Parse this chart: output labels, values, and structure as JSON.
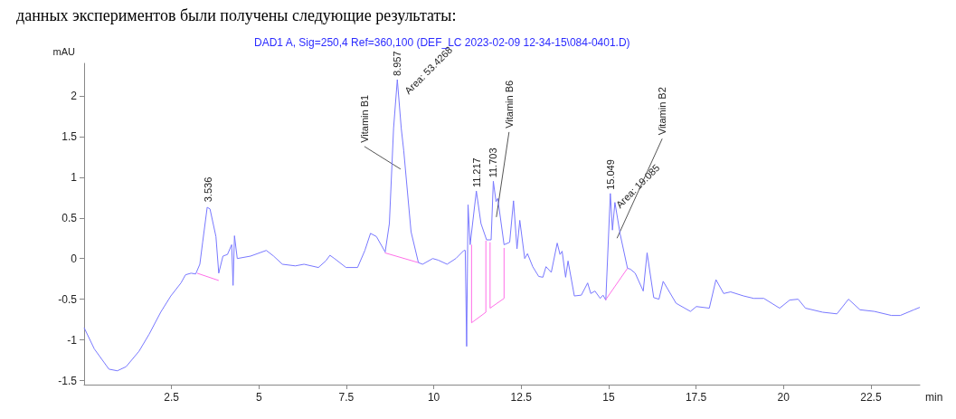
{
  "chart_data": {
    "type": "line",
    "title": "DAD1 A, Sig=250,4 Ref=360,100 (DEF_LC 2023-02-09 12-34-15\\084-0401.D)",
    "xlabel": "min",
    "ylabel": "mAU",
    "annotations": [
      {
        "text": "3.536",
        "x": 3.536,
        "y": 0.65
      },
      {
        "text": "Vitamin B1",
        "x": 9.05,
        "y": 1.1
      },
      {
        "text": "8.957",
        "x": 8.957,
        "y": 2.2
      },
      {
        "text": "Area: 53.4268",
        "x": 8.957,
        "y": 2.2
      },
      {
        "text": "11.217",
        "x": 11.217,
        "y": 0.83
      },
      {
        "text": "11.703",
        "x": 11.703,
        "y": 0.95
      },
      {
        "text": "Vitamin B6",
        "x": 11.79,
        "y": 0.51
      },
      {
        "text": "15.049",
        "x": 15.049,
        "y": 0.8
      },
      {
        "text": "Area: 19.085",
        "x": 15.049,
        "y": 0.8
      },
      {
        "text": "Vitamin B2",
        "x": 15.24,
        "y": 0.25
      },
      "данных экспериментов были получены следующие результаты:"
    ],
    "series": [
      {
        "color": "#7878ff",
        "x": [
          0,
          0.29,
          0.71,
          0.95,
          1.2,
          1.57,
          1.86,
          2.19,
          2.48,
          2.77,
          2.9,
          3.06,
          3.19,
          3.31,
          3.39,
          3.52,
          3.6,
          3.77,
          3.85,
          3.97,
          4.1,
          4.22,
          4.26,
          4.3,
          4.38,
          4.76,
          5.21,
          5.42,
          5.67,
          6.04,
          6.29,
          6.7,
          6.91,
          7.03,
          7.16,
          7.49,
          7.82,
          8.03,
          8.19,
          8.36,
          8.61,
          8.73,
          8.85,
          8.957,
          9.07,
          9.14,
          9.35,
          9.56,
          9.68,
          9.97,
          10.13,
          10.38,
          10.63,
          10.86,
          10.9,
          10.94,
          10.98,
          11.04,
          11.217,
          11.35,
          11.51,
          11.64,
          11.703,
          11.78,
          11.83,
          12.01,
          12.17,
          12.28,
          12.38,
          12.46,
          12.6,
          12.68,
          12.83,
          13.0,
          13.12,
          13.21,
          13.36,
          13.53,
          13.61,
          13.67,
          13.77,
          13.84,
          14.02,
          14.22,
          14.4,
          14.49,
          14.61,
          14.76,
          14.84,
          14.92,
          15.049,
          15.11,
          15.18,
          15.33,
          15.54,
          15.62,
          15.76,
          15.99,
          16.1,
          16.29,
          16.44,
          16.56,
          16.93,
          17.34,
          17.51,
          17.88,
          18.07,
          18.29,
          18.49,
          18.86,
          19.15,
          19.44,
          19.89,
          20.18,
          20.42,
          20.63,
          21.12,
          21.53,
          21.86,
          22.19,
          22.6,
          23.09,
          23.34,
          23.73,
          23.9
        ],
        "values": [
          -0.85,
          -1.11,
          -1.36,
          -1.38,
          -1.33,
          -1.14,
          -0.93,
          -0.66,
          -0.46,
          -0.3,
          -0.2,
          -0.18,
          -0.19,
          -0.07,
          0.2,
          0.63,
          0.61,
          0.27,
          -0.18,
          0.03,
          0.05,
          0.17,
          -0.33,
          0.28,
          0.0,
          0.03,
          0.1,
          0.03,
          -0.07,
          -0.09,
          -0.07,
          -0.11,
          -0.03,
          0.04,
          0.0,
          -0.11,
          -0.11,
          0.1,
          0.31,
          0.27,
          0.08,
          0.43,
          1.6,
          2.2,
          1.6,
          1.33,
          0.33,
          -0.05,
          -0.07,
          0.0,
          -0.02,
          -0.07,
          0.0,
          0.1,
          0.1,
          -1.08,
          0.66,
          0.17,
          0.83,
          0.43,
          0.23,
          0.23,
          0.95,
          0.7,
          0.74,
          0.17,
          0.2,
          0.71,
          0.12,
          0.47,
          0.0,
          0.06,
          -0.1,
          -0.22,
          -0.23,
          -0.1,
          -0.17,
          0.19,
          0.05,
          0.09,
          -0.23,
          -0.03,
          -0.46,
          -0.45,
          -0.3,
          -0.43,
          -0.4,
          -0.49,
          -0.45,
          -0.51,
          0.8,
          0.35,
          0.69,
          0.3,
          -0.12,
          -0.13,
          -0.18,
          -0.4,
          0.07,
          -0.48,
          -0.5,
          -0.28,
          -0.55,
          -0.65,
          -0.59,
          -0.61,
          -0.26,
          -0.43,
          -0.41,
          -0.46,
          -0.49,
          -0.49,
          -0.61,
          -0.51,
          -0.5,
          -0.61,
          -0.66,
          -0.68,
          -0.5,
          -0.63,
          -0.65,
          -0.7,
          -0.7,
          -0.63,
          -0.6
        ]
      },
      {
        "color": "#ff70e8",
        "x": [
          3.23,
          3.85,
          3.86,
          8.6,
          9.56,
          9.57,
          11.08,
          11.08,
          11.49,
          11.49,
          11.5,
          11.61,
          11.61,
          12.01,
          12.01,
          12.02,
          14.91,
          15.54
        ],
        "values": [
          -0.18,
          -0.27,
          null,
          0.07,
          -0.05,
          null,
          0.17,
          -0.79,
          -0.66,
          0.22,
          null,
          0.2,
          -0.61,
          -0.49,
          0.13,
          null,
          -0.51,
          -0.12
        ]
      }
    ],
    "xlim": [
      0,
      23.9
    ],
    "ylim": [
      -1.55,
      2.4
    ],
    "xticks": [
      2.5,
      5,
      7.5,
      10,
      12.5,
      15,
      17.5,
      20,
      22.5
    ],
    "yticks": [
      -1.5,
      -1,
      -0.5,
      0,
      0.5,
      1,
      1.5,
      2
    ],
    "grid": false,
    "marker": "none",
    "line_style": "solid"
  }
}
